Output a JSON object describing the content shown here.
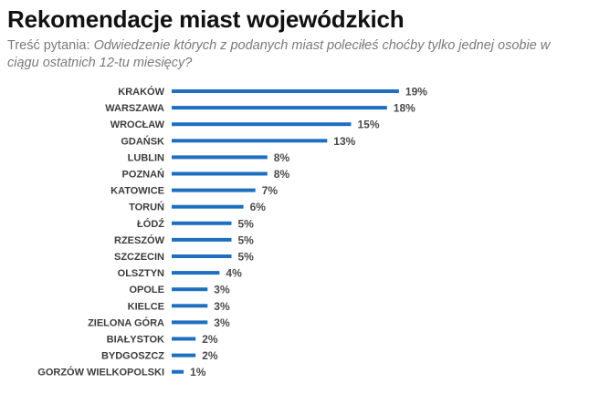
{
  "header": {
    "title": "Rekomendacje miast wojewódzkich",
    "question_prefix": "Treść pytania: ",
    "question_text": "Odwiedzenie których z podanych miast poleciłeś choćby tylko jednej osobie w ciągu ostatnich 12-tu miesięcy?"
  },
  "colors": {
    "bar": "#1f6fc1"
  },
  "chart_data": {
    "type": "bar",
    "orientation": "horizontal",
    "title": "Rekomendacje miast wojewódzkich",
    "categories": [
      "KRAKÓW",
      "WARSZAWA",
      "WROCŁAW",
      "GDAŃSK",
      "LUBLIN",
      "POZNAŃ",
      "KATOWICE",
      "TORUŃ",
      "ŁÓDŹ",
      "RZESZÓW",
      "SZCZECIN",
      "OLSZTYN",
      "OPOLE",
      "KIELCE",
      "ZIELONA GÓRA",
      "BIAŁYSTOK",
      "BYDGOSZCZ",
      "GORZÓW WIELKOPOLSKI"
    ],
    "values": [
      19,
      18,
      15,
      13,
      8,
      8,
      7,
      6,
      5,
      5,
      5,
      4,
      3,
      3,
      3,
      2,
      2,
      1
    ],
    "value_labels": [
      "19%",
      "18%",
      "15%",
      "13%",
      "8%",
      "8%",
      "7%",
      "6%",
      "5%",
      "5%",
      "5%",
      "4%",
      "3%",
      "3%",
      "3%",
      "2%",
      "2%",
      "1%"
    ],
    "unit": "%",
    "xlim": [
      0,
      19
    ],
    "grid": false,
    "legend": "none"
  }
}
